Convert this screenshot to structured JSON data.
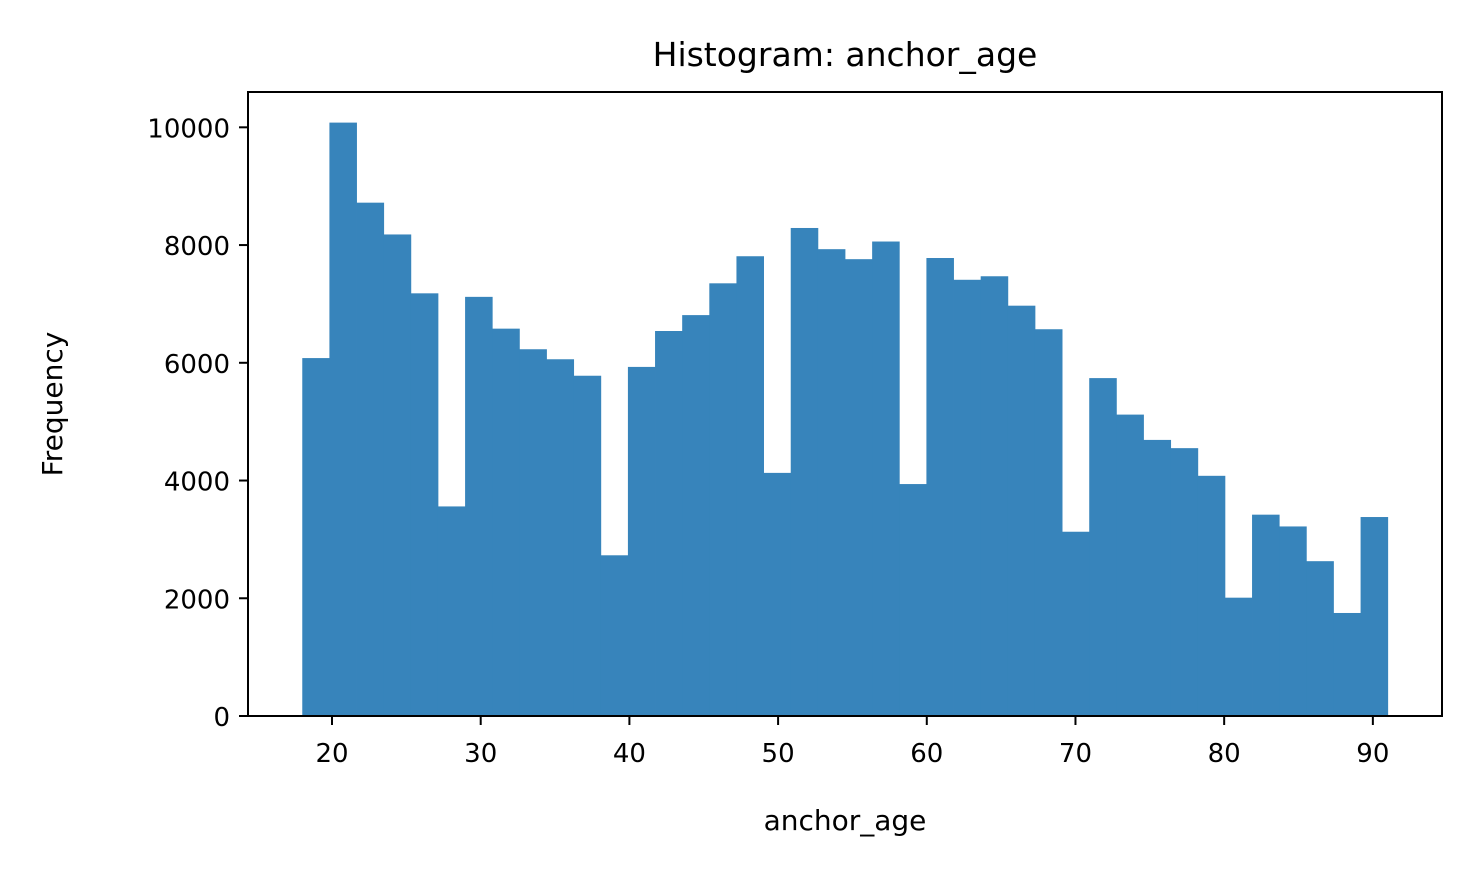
{
  "chart_data": {
    "type": "bar",
    "title": "Histogram: anchor_age",
    "xlabel": "anchor_age",
    "ylabel": "Frequency",
    "xlim": [
      14.35,
      94.65
    ],
    "ylim": [
      0,
      10600
    ],
    "xticks": [
      "20",
      "30",
      "40",
      "50",
      "60",
      "70",
      "80",
      "90"
    ],
    "yticks": [
      "0",
      "2000",
      "4000",
      "6000",
      "8000",
      "10000"
    ],
    "bar_color": "#3784bb",
    "bin_edges": [
      18.0,
      19.825,
      21.65,
      23.475,
      25.3,
      27.125,
      28.95,
      30.775,
      32.6,
      34.425,
      36.25,
      38.075,
      39.9,
      41.725,
      43.55,
      45.375,
      47.2,
      49.025,
      50.85,
      52.675,
      54.5,
      56.325,
      58.15,
      59.975,
      61.8,
      63.625,
      65.45,
      67.275,
      69.1,
      70.925,
      72.75,
      74.575,
      76.4,
      78.225,
      80.05,
      81.875,
      83.7,
      85.525,
      87.35,
      89.175,
      91.0
    ],
    "counts": [
      6080,
      10080,
      8720,
      8180,
      7180,
      3560,
      7120,
      6580,
      6230,
      6060,
      5780,
      2730,
      5930,
      6540,
      6810,
      7350,
      7810,
      4130,
      8290,
      7930,
      7760,
      8060,
      3940,
      7780,
      7410,
      7470,
      6970,
      6570,
      3130,
      5740,
      5120,
      4690,
      4550,
      4080,
      2010,
      3420,
      3220,
      2630,
      1750,
      3380
    ],
    "grid": false,
    "legend": "none"
  }
}
